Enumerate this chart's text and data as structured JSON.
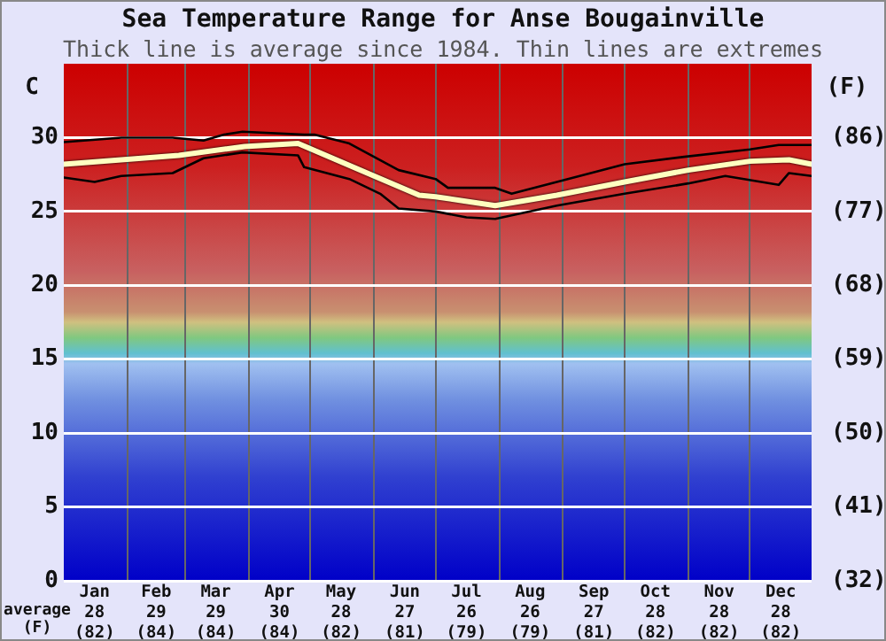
{
  "chart_data": {
    "type": "line",
    "title": "Sea Temperature Range for Anse Bougainville",
    "subtitle": "Thick line is average since 1984. Thin lines are extremes",
    "ylabel": "C",
    "y2label": "(F)",
    "annotations": [
      "average\n(F)"
    ],
    "series": [
      {
        "color": "#000000",
        "x": [
          "--01-01",
          "--01-29",
          "--02-23",
          "--03-10",
          "--03-20",
          "--03-29",
          "--04-28",
          "--05-03",
          "--05-20",
          "--06-13",
          "--07-01",
          "--07-07",
          "--07-30",
          "--08-07",
          "--08-29",
          "--10-01",
          "--10-30",
          "--12-01",
          "--12-15",
          "--12-31"
        ],
        "values": [
          29.7,
          30.0,
          30.0,
          29.8,
          30.2,
          30.4,
          30.2,
          30.2,
          29.6,
          27.8,
          27.2,
          26.6,
          26.6,
          26.2,
          27.0,
          28.2,
          28.7,
          29.2,
          29.5,
          29.5
        ]
      },
      {
        "color": "#000000",
        "x": [
          "--01-01",
          "--01-16",
          "--01-29",
          "--02-23",
          "--03-10",
          "--03-29",
          "--04-25",
          "--04-28",
          "--05-20",
          "--06-04",
          "--06-13",
          "--07-01",
          "--07-16",
          "--07-30",
          "--08-29",
          "--10-01",
          "--11-01",
          "--11-19",
          "--12-15",
          "--12-20",
          "--12-31"
        ],
        "values": [
          27.3,
          27.0,
          27.4,
          27.6,
          28.6,
          29.0,
          28.8,
          28.0,
          27.2,
          26.2,
          25.2,
          25.0,
          24.6,
          24.5,
          25.4,
          26.2,
          26.9,
          27.4,
          26.8,
          27.6,
          27.4
        ]
      },
      {
        "color": "#ffffc0",
        "x": [
          "--01-01",
          "--01-29",
          "--02-26",
          "--03-30",
          "--04-25",
          "--06-01",
          "--06-23",
          "--07-01",
          "--07-30",
          "--08-29",
          "--10-01",
          "--11-01",
          "--12-01",
          "--12-20",
          "--12-31"
        ],
        "values": [
          28.2,
          28.5,
          28.8,
          29.4,
          29.6,
          27.4,
          26.1,
          26.0,
          25.4,
          26.1,
          27.0,
          27.8,
          28.4,
          28.5,
          28.2
        ]
      }
    ],
    "xlim": [
      "--01-01",
      "--12-31"
    ],
    "xticks": [
      {
        "value": "--01-16",
        "label": "Jan\n28\n(82)"
      },
      {
        "value": "--02-01",
        "label": null
      },
      {
        "value": "--02-15",
        "label": "Feb\n29\n(84)"
      },
      {
        "value": "--03-01",
        "label": null
      },
      {
        "value": "--03-16",
        "label": "Mar\n29\n(84)"
      },
      {
        "value": "--04-01",
        "label": null
      },
      {
        "value": "--04-16",
        "label": "Apr\n30\n(84)"
      },
      {
        "value": "--05-01",
        "label": null
      },
      {
        "value": "--05-16",
        "label": "May\n28\n(82)"
      },
      {
        "value": "--06-01",
        "label": null
      },
      {
        "value": "--06-16",
        "label": "Jun\n27\n(81)"
      },
      {
        "value": "--07-01",
        "label": null
      },
      {
        "value": "--07-16",
        "label": "Jul\n26\n(79)"
      },
      {
        "value": "--08-01",
        "label": null
      },
      {
        "value": "--08-16",
        "label": "Aug\n26\n(79)"
      },
      {
        "value": "--09-01",
        "label": null
      },
      {
        "value": "--09-16",
        "label": "Sep\n27\n(81)"
      },
      {
        "value": "--10-01",
        "label": null
      },
      {
        "value": "--10-16",
        "label": "Oct\n28\n(82)"
      },
      {
        "value": "--11-01",
        "label": null
      },
      {
        "value": "--11-16",
        "label": "Nov\n28\n(82)"
      },
      {
        "value": "--12-01",
        "label": null
      },
      {
        "value": "--12-16",
        "label": "Dec\n28\n(82)"
      }
    ],
    "ylim": [
      0,
      35
    ],
    "yticks": [
      0,
      5,
      10,
      15,
      20,
      25,
      30
    ],
    "y2lim": [
      32,
      95
    ],
    "y2ticks": [
      {
        "value": 32,
        "label": "(32)"
      },
      {
        "value": 41,
        "label": "(41)"
      },
      {
        "value": 50,
        "label": "(50)"
      },
      {
        "value": 59,
        "label": "(59)"
      },
      {
        "value": 68,
        "label": "(68)"
      },
      {
        "value": 77,
        "label": "(77)"
      },
      {
        "value": 86,
        "label": "(86)"
      }
    ],
    "grid": true,
    "legend": false,
    "marker": "none",
    "line_style": "solid"
  }
}
